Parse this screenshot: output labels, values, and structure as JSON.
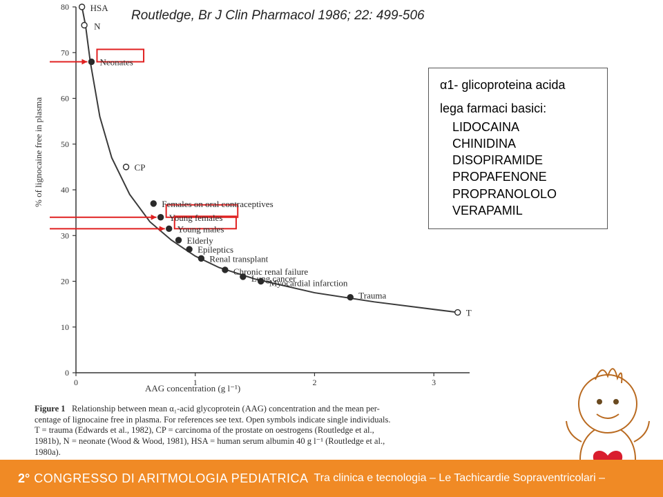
{
  "citation": "Routledge, Br J Clin Pharmacol 1986; 22: 499-506",
  "chart": {
    "type": "line",
    "background_color": "#ffffff",
    "curve_color": "#3a3a3a",
    "curve_width": 2,
    "marker_fill": "#2a2a2a",
    "marker_open": "#ffffff",
    "marker_stroke": "#2a2a2a",
    "marker_radius": 4,
    "highlight_stroke": "#e02020",
    "highlight_width": 2,
    "arrow_color": "#e02020",
    "y_axis": {
      "label": "% of lignocaine free in plasma",
      "min": 0,
      "max": 80,
      "ticks": [
        0,
        10,
        20,
        30,
        40,
        50,
        60,
        70,
        80
      ]
    },
    "x_axis": {
      "label": "AAG concentration (g l⁻¹)",
      "min": 0,
      "max": 3,
      "ticks": [
        0,
        1,
        2,
        3
      ]
    },
    "curve_points": [
      {
        "x": 0.05,
        "y": 80
      },
      {
        "x": 0.08,
        "y": 76
      },
      {
        "x": 0.12,
        "y": 68
      },
      {
        "x": 0.2,
        "y": 56
      },
      {
        "x": 0.3,
        "y": 47
      },
      {
        "x": 0.45,
        "y": 39
      },
      {
        "x": 0.62,
        "y": 33
      },
      {
        "x": 0.8,
        "y": 29
      },
      {
        "x": 1.0,
        "y": 25.5
      },
      {
        "x": 1.2,
        "y": 23
      },
      {
        "x": 1.5,
        "y": 20.5
      },
      {
        "x": 2.0,
        "y": 17.5
      },
      {
        "x": 2.5,
        "y": 15.5
      },
      {
        "x": 3.2,
        "y": 13.2
      }
    ],
    "data_points": [
      {
        "x": 0.05,
        "y": 80,
        "label": "HSA",
        "open": true,
        "highlight": false,
        "label_dx": 12,
        "label_dy": -4
      },
      {
        "x": 0.07,
        "y": 76,
        "label": "N",
        "open": true,
        "highlight": false,
        "label_dx": 14,
        "label_dy": -4
      },
      {
        "x": 0.13,
        "y": 68,
        "label": "Neonates",
        "open": false,
        "highlight": true,
        "label_dx": 12,
        "label_dy": -5,
        "arrow": true
      },
      {
        "x": 0.42,
        "y": 45,
        "label": "CP",
        "open": true,
        "highlight": false,
        "label_dx": 12,
        "label_dy": -5
      },
      {
        "x": 0.65,
        "y": 37,
        "label": "Females on oral contraceptives",
        "open": false,
        "highlight": false,
        "label_dx": 12,
        "label_dy": -5
      },
      {
        "x": 0.71,
        "y": 34,
        "label": "Young females",
        "open": false,
        "highlight": true,
        "label_dx": 12,
        "label_dy": -5,
        "arrow": true
      },
      {
        "x": 0.78,
        "y": 31.5,
        "label": "Young males",
        "open": false,
        "highlight": true,
        "label_dx": 12,
        "label_dy": -5,
        "arrow": true
      },
      {
        "x": 0.86,
        "y": 29,
        "label": "Elderly",
        "open": false,
        "highlight": false,
        "label_dx": 12,
        "label_dy": -5
      },
      {
        "x": 0.95,
        "y": 27,
        "label": "Epileptics",
        "open": false,
        "highlight": false,
        "label_dx": 12,
        "label_dy": -5
      },
      {
        "x": 1.05,
        "y": 25,
        "label": "Renal transplant",
        "open": false,
        "highlight": false,
        "label_dx": 12,
        "label_dy": -5
      },
      {
        "x": 1.25,
        "y": 22.5,
        "label": "Chronic renal failure",
        "open": false,
        "highlight": false,
        "label_dx": 12,
        "label_dy": -3
      },
      {
        "x": 1.4,
        "y": 21,
        "label": "Lung cancer",
        "open": false,
        "highlight": false,
        "label_dx": 12,
        "label_dy": -3
      },
      {
        "x": 1.55,
        "y": 20,
        "label": "Myocardial infarction",
        "open": false,
        "highlight": false,
        "label_dx": 12,
        "label_dy": -3
      },
      {
        "x": 2.3,
        "y": 16.5,
        "label": "Trauma",
        "open": false,
        "highlight": false,
        "label_dx": 12,
        "label_dy": -8
      },
      {
        "x": 3.2,
        "y": 13.2,
        "label": "T",
        "open": true,
        "highlight": false,
        "label_dx": 12,
        "label_dy": -5
      }
    ]
  },
  "info_box": {
    "title": "α1- glicoproteina acida",
    "subtitle": "lega farmaci basici:",
    "drugs": [
      "LIDOCAINA",
      "CHINIDINA",
      "DISOPIRAMIDE",
      "PROPAFENONE",
      "PROPRANOLOLO",
      "VERAPAMIL"
    ]
  },
  "caption": {
    "figure_label": "Figure 1",
    "text_line1": "Relationship between mean α₁-acid glycoprotein (AAG) concentration and the mean per-",
    "text_line2": "centage of lignocaine free in plasma. For references see text. Open symbols indicate single individuals.",
    "text_line3": "T = trauma (Edwards et al., 1982), CP = carcinoma of the prostate on oestrogens (Routledge et al.,",
    "text_line4": "1981b), N = neonate (Wood & Wood, 1981), HSA = human serum albumin 40 g l⁻¹ (Routledge et al.,",
    "text_line5": "1980a)."
  },
  "banner": {
    "edition": "2°",
    "title_main": "CONGRESSO DI ARITMOLOGIA PEDIATRICA",
    "subtitle": "Tra clinica e tecnologia – Le Tachicardie Sopraventricolari –",
    "bg_color": "#f08a25",
    "text_color": "#ffffff"
  }
}
